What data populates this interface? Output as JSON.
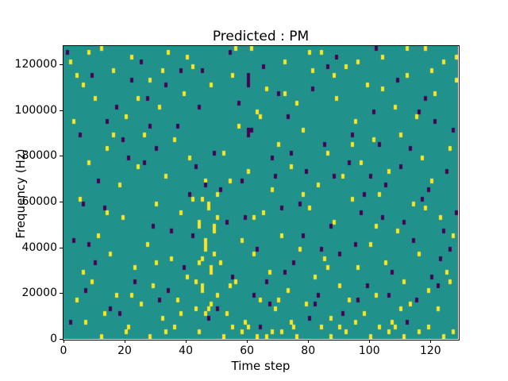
{
  "figure": {
    "title": "Predicted : PM",
    "xlabel": "Time step",
    "ylabel": "Frequency (Hz)"
  },
  "chart_data": {
    "type": "heatmap",
    "title": "Predicted : PM",
    "xlabel": "Time step",
    "ylabel": "Frequency (Hz)",
    "x_range": [
      0,
      129
    ],
    "y_range_hz": [
      0,
      128000
    ],
    "grid_cols": 129,
    "grid_rows": 64,
    "hz_per_row": 2000,
    "x_tick_values": [
      0,
      20,
      40,
      60,
      80,
      100,
      120
    ],
    "x_tick_labels": [
      "0",
      "20",
      "40",
      "60",
      "80",
      "100",
      "120"
    ],
    "y_tick_values": [
      0,
      20000,
      40000,
      60000,
      80000,
      100000,
      120000
    ],
    "y_tick_labels": [
      "0",
      "20000",
      "40000",
      "60000",
      "80000",
      "100000",
      "120000"
    ],
    "legend": "none",
    "grid": false,
    "colors": {
      "background": "#21918c",
      "positive": "#fde725",
      "negative": "#440154",
      "axes": "#000000",
      "page": "#ffffff"
    },
    "yellow_cells": [
      [
        2,
        60
      ],
      [
        3,
        47
      ],
      [
        4,
        8
      ],
      [
        5,
        30
      ],
      [
        6,
        55
      ],
      [
        7,
        3
      ],
      [
        8,
        38
      ],
      [
        9,
        12
      ],
      [
        10,
        52
      ],
      [
        11,
        22
      ],
      [
        12,
        63
      ],
      [
        13,
        5
      ],
      [
        14,
        41
      ],
      [
        15,
        18
      ],
      [
        16,
        58
      ],
      [
        17,
        9
      ],
      [
        18,
        33
      ],
      [
        19,
        26
      ],
      [
        20,
        48
      ],
      [
        21,
        2
      ],
      [
        22,
        61
      ],
      [
        23,
        15
      ],
      [
        24,
        37
      ],
      [
        25,
        7
      ],
      [
        26,
        44
      ],
      [
        27,
        20
      ],
      [
        28,
        56
      ],
      [
        29,
        11
      ],
      [
        30,
        29
      ],
      [
        31,
        50
      ],
      [
        32,
        4
      ],
      [
        33,
        35
      ],
      [
        34,
        62
      ],
      [
        35,
        17
      ],
      [
        36,
        43
      ],
      [
        37,
        8
      ],
      [
        38,
        27
      ],
      [
        39,
        53
      ],
      [
        40,
        13
      ],
      [
        41,
        39
      ],
      [
        42,
        59
      ],
      [
        43,
        6
      ],
      [
        44,
        24
      ],
      [
        44,
        25
      ],
      [
        45,
        10
      ],
      [
        45,
        11
      ],
      [
        45,
        30
      ],
      [
        46,
        19
      ],
      [
        46,
        20
      ],
      [
        46,
        21
      ],
      [
        47,
        28
      ],
      [
        47,
        29
      ],
      [
        48,
        14
      ],
      [
        48,
        15
      ],
      [
        49,
        23
      ],
      [
        49,
        24
      ],
      [
        50,
        9
      ],
      [
        50,
        31
      ],
      [
        51,
        16
      ],
      [
        52,
        40
      ],
      [
        53,
        5
      ],
      [
        54,
        34
      ],
      [
        55,
        57
      ],
      [
        56,
        12
      ],
      [
        57,
        46
      ],
      [
        58,
        21
      ],
      [
        59,
        3
      ],
      [
        60,
        36
      ],
      [
        61,
        63
      ],
      [
        62,
        18
      ],
      [
        63,
        49
      ],
      [
        64,
        8
      ],
      [
        65,
        27
      ],
      [
        66,
        54
      ],
      [
        67,
        14
      ],
      [
        68,
        32
      ],
      [
        69,
        6
      ],
      [
        70,
        42
      ],
      [
        71,
        22
      ],
      [
        72,
        60
      ],
      [
        73,
        10
      ],
      [
        74,
        37
      ],
      [
        75,
        2
      ],
      [
        76,
        51
      ],
      [
        77,
        19
      ],
      [
        78,
        45
      ],
      [
        79,
        7
      ],
      [
        80,
        28
      ],
      [
        81,
        58
      ],
      [
        82,
        13
      ],
      [
        83,
        33
      ],
      [
        84,
        62
      ],
      [
        85,
        17
      ],
      [
        86,
        40
      ],
      [
        87,
        4
      ],
      [
        88,
        25
      ],
      [
        89,
        52
      ],
      [
        90,
        11
      ],
      [
        91,
        35
      ],
      [
        92,
        59
      ],
      [
        93,
        8
      ],
      [
        94,
        30
      ],
      [
        95,
        47
      ],
      [
        96,
        15
      ],
      [
        97,
        38
      ],
      [
        98,
        5
      ],
      [
        99,
        55
      ],
      [
        100,
        20
      ],
      [
        101,
        43
      ],
      [
        102,
        9
      ],
      [
        103,
        31
      ],
      [
        104,
        61
      ],
      [
        105,
        16
      ],
      [
        106,
        36
      ],
      [
        107,
        3
      ],
      [
        108,
        50
      ],
      [
        109,
        23
      ],
      [
        110,
        44
      ],
      [
        111,
        12
      ],
      [
        112,
        57
      ],
      [
        113,
        7
      ],
      [
        114,
        29
      ],
      [
        115,
        48
      ],
      [
        116,
        18
      ],
      [
        117,
        39
      ],
      [
        118,
        63
      ],
      [
        119,
        10
      ],
      [
        120,
        34
      ],
      [
        121,
        53
      ],
      [
        122,
        6
      ],
      [
        123,
        26
      ],
      [
        124,
        60
      ],
      [
        125,
        14
      ],
      [
        126,
        41
      ],
      [
        127,
        22
      ],
      [
        128,
        56
      ],
      [
        12,
        0
      ],
      [
        20,
        1
      ],
      [
        28,
        0
      ],
      [
        36,
        2
      ],
      [
        44,
        1
      ],
      [
        52,
        0
      ],
      [
        60,
        2
      ],
      [
        68,
        1
      ],
      [
        76,
        0
      ],
      [
        84,
        2
      ],
      [
        92,
        1
      ],
      [
        100,
        0
      ],
      [
        108,
        2
      ],
      [
        116,
        1
      ],
      [
        124,
        0
      ],
      [
        46,
        5
      ],
      [
        47,
        6
      ],
      [
        48,
        7
      ],
      [
        44,
        16
      ],
      [
        45,
        17
      ],
      [
        49,
        18
      ],
      [
        50,
        26
      ],
      [
        43,
        12
      ],
      [
        42,
        30
      ],
      [
        58,
        1
      ],
      [
        66,
        0
      ],
      [
        74,
        3
      ],
      [
        33,
        1
      ],
      [
        90,
        2
      ],
      [
        106,
        1
      ],
      [
        55,
        2
      ],
      [
        63,
        0
      ],
      [
        71,
        1
      ],
      [
        87,
        0
      ],
      [
        95,
        3
      ],
      [
        103,
        2
      ],
      [
        111,
        0
      ],
      [
        119,
        2
      ],
      [
        127,
        1
      ],
      [
        4,
        57
      ],
      [
        8,
        62
      ],
      [
        16,
        44
      ],
      [
        24,
        52
      ],
      [
        32,
        58
      ],
      [
        40,
        61
      ],
      [
        48,
        55
      ],
      [
        56,
        63
      ],
      [
        64,
        48
      ],
      [
        72,
        53
      ],
      [
        80,
        62
      ],
      [
        88,
        57
      ],
      [
        96,
        60
      ],
      [
        104,
        54
      ],
      [
        112,
        63
      ],
      [
        120,
        58
      ],
      [
        128,
        61
      ],
      [
        6,
        14
      ],
      [
        14,
        27
      ],
      [
        22,
        9
      ],
      [
        30,
        16
      ],
      [
        38,
        5
      ],
      [
        46,
        34
      ],
      [
        54,
        11
      ],
      [
        62,
        26
      ],
      [
        70,
        8
      ],
      [
        78,
        31
      ],
      [
        86,
        15
      ],
      [
        94,
        42
      ],
      [
        102,
        24
      ],
      [
        110,
        6
      ],
      [
        118,
        28
      ],
      [
        126,
        12
      ]
    ],
    "purple_cells": [
      [
        1,
        62
      ],
      [
        5,
        44
      ],
      [
        9,
        57
      ],
      [
        13,
        28
      ],
      [
        17,
        50
      ],
      [
        21,
        39
      ],
      [
        25,
        60
      ],
      [
        29,
        24
      ],
      [
        33,
        55
      ],
      [
        37,
        46
      ],
      [
        41,
        31
      ],
      [
        45,
        58
      ],
      [
        49,
        40
      ],
      [
        53,
        25
      ],
      [
        57,
        51
      ],
      [
        61,
        45
      ],
      [
        65,
        59
      ],
      [
        69,
        35
      ],
      [
        73,
        48
      ],
      [
        77,
        29
      ],
      [
        81,
        54
      ],
      [
        85,
        42
      ],
      [
        89,
        61
      ],
      [
        93,
        38
      ],
      [
        97,
        27
      ],
      [
        101,
        49
      ],
      [
        105,
        33
      ],
      [
        109,
        56
      ],
      [
        113,
        41
      ],
      [
        117,
        30
      ],
      [
        121,
        47
      ],
      [
        125,
        36
      ],
      [
        3,
        21
      ],
      [
        7,
        10
      ],
      [
        11,
        34
      ],
      [
        15,
        6
      ],
      [
        19,
        43
      ],
      [
        23,
        12
      ],
      [
        27,
        52
      ],
      [
        31,
        8
      ],
      [
        35,
        23
      ],
      [
        39,
        15
      ],
      [
        43,
        37
      ],
      [
        47,
        4
      ],
      [
        51,
        32
      ],
      [
        55,
        13
      ],
      [
        59,
        26
      ],
      [
        60,
        55
      ],
      [
        60,
        56
      ],
      [
        60,
        57
      ],
      [
        60,
        44
      ],
      [
        60,
        45
      ],
      [
        63,
        19
      ],
      [
        67,
        7
      ],
      [
        71,
        28
      ],
      [
        75,
        16
      ],
      [
        79,
        36
      ],
      [
        83,
        9
      ],
      [
        87,
        24
      ],
      [
        91,
        5
      ],
      [
        95,
        20
      ],
      [
        99,
        11
      ],
      [
        103,
        42
      ],
      [
        107,
        14
      ],
      [
        111,
        25
      ],
      [
        115,
        8
      ],
      [
        119,
        32
      ],
      [
        123,
        17
      ],
      [
        127,
        45
      ],
      [
        2,
        3
      ],
      [
        10,
        16
      ],
      [
        18,
        5
      ],
      [
        26,
        38
      ],
      [
        34,
        10
      ],
      [
        42,
        22
      ],
      [
        50,
        6
      ],
      [
        58,
        34
      ],
      [
        66,
        12
      ],
      [
        74,
        40
      ],
      [
        82,
        7
      ],
      [
        90,
        18
      ],
      [
        98,
        31
      ],
      [
        106,
        9
      ],
      [
        114,
        21
      ],
      [
        122,
        11
      ],
      [
        64,
        2
      ],
      [
        72,
        14
      ],
      [
        80,
        4
      ],
      [
        88,
        35
      ],
      [
        96,
        8
      ],
      [
        104,
        26
      ],
      [
        112,
        3
      ],
      [
        120,
        13
      ],
      [
        128,
        27
      ],
      [
        38,
        58
      ],
      [
        54,
        62
      ],
      [
        70,
        53
      ],
      [
        86,
        59
      ],
      [
        102,
        63
      ],
      [
        118,
        52
      ],
      [
        6,
        29
      ],
      [
        14,
        47
      ],
      [
        22,
        56
      ],
      [
        30,
        41
      ],
      [
        46,
        33
      ],
      [
        62,
        9
      ],
      [
        78,
        22
      ],
      [
        94,
        44
      ],
      [
        110,
        37
      ],
      [
        126,
        19
      ],
      [
        8,
        20
      ],
      [
        28,
        46
      ],
      [
        44,
        50
      ],
      [
        68,
        39
      ],
      [
        84,
        19
      ],
      [
        100,
        35
      ],
      [
        116,
        49
      ],
      [
        124,
        23
      ]
    ]
  }
}
